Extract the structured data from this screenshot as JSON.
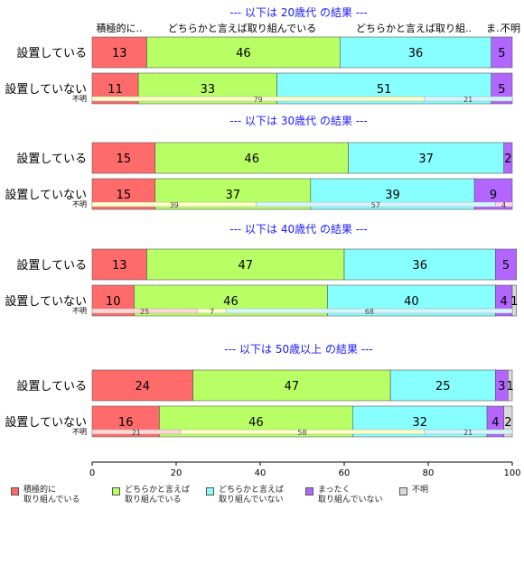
{
  "chart_data": {
    "type": "bar",
    "orientation": "horizontal",
    "stacked": true,
    "xlim": [
      0,
      100
    ],
    "x_ticks": [
      "0",
      "20",
      "40",
      "60",
      "80",
      "100"
    ],
    "top_labels": [
      "積極的に..",
      "どちらかと言えば取り組んでいる",
      "どちらかと言えば取り組..",
      "ま..",
      "不明"
    ],
    "categories": [
      "設置している",
      "設置していない"
    ],
    "unknown_label": "不明",
    "legend": {
      "position": "bottom",
      "items": [
        {
          "name": "積極的に\n取り組んでいる",
          "color": "#ff6b6b"
        },
        {
          "name": "どちらかと言えば\n取り組んでいる",
          "color": "#b8ff66"
        },
        {
          "name": "どちらかと言えば\n取り組んでいない",
          "color": "#88ffff"
        },
        {
          "name": "まったく\n取り組んでいない",
          "color": "#b266ff"
        },
        {
          "name": "不明",
          "color": "#d9d9d9"
        }
      ]
    },
    "panels": [
      {
        "title": "--- 以下は 20歳代 の結果 ---",
        "rows": [
          {
            "category": "設置している",
            "values": [
              13,
              46,
              36,
              5,
              0
            ]
          },
          {
            "category": "設置していない",
            "values": [
              11,
              33,
              51,
              5,
              0
            ]
          }
        ],
        "unknown_values": [
          0,
          79,
          21
        ],
        "unknown_colors": [
          "#ffd6d6",
          "#fdfdc8",
          "#d6f6ff"
        ]
      },
      {
        "title": "--- 以下は 30歳代 の結果 ---",
        "rows": [
          {
            "category": "設置している",
            "values": [
              15,
              46,
              37,
              2,
              0
            ]
          },
          {
            "category": "設置していない",
            "values": [
              15,
              37,
              39,
              9,
              0
            ]
          }
        ],
        "unknown_values": [
          0,
          39,
          57,
          4
        ],
        "unknown_colors": [
          "#ffd6d6",
          "#fdfdc8",
          "#d6f6ff",
          "#ffd6f0"
        ]
      },
      {
        "title": "--- 以下は 40歳代 の結果 ---",
        "rows": [
          {
            "category": "設置している",
            "values": [
              13,
              47,
              36,
              5,
              0
            ]
          },
          {
            "category": "設置していない",
            "values": [
              10,
              46,
              40,
              4,
              1
            ]
          }
        ],
        "unknown_values": [
          25,
          7,
          68
        ],
        "unknown_colors": [
          "#ffd6d6",
          "#fdfdc8",
          "#d6f6ff"
        ]
      },
      {
        "title": "--- 以下は 50歳以上 の結果 ---",
        "rows": [
          {
            "category": "設置している",
            "values": [
              24,
              47,
              25,
              3,
              1
            ]
          },
          {
            "category": "設置していない",
            "values": [
              16,
              46,
              32,
              4,
              2
            ]
          }
        ],
        "unknown_values": [
          21,
          58,
          21
        ],
        "unknown_colors": [
          "#ffd6d6",
          "#fdfdc8",
          "#d6f6ff"
        ]
      }
    ]
  }
}
